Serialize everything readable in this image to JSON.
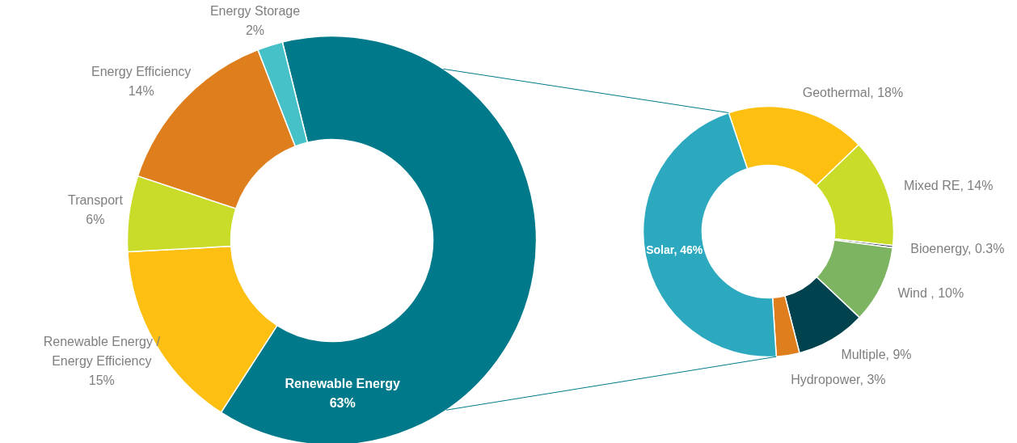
{
  "chart_data": [
    {
      "type": "donut",
      "categories": [
        "Renewable Energy",
        "Renewable Energy / Energy Efficiency",
        "Transport",
        "Energy Efficiency",
        "Energy Storage"
      ],
      "values": [
        63,
        15,
        6,
        14,
        2
      ],
      "value_labels": [
        "63%",
        "15%",
        "6%",
        "14%",
        "2%"
      ],
      "colors": [
        "#007a8a",
        "#fdbf12",
        "#c9dc2a",
        "#df7e1c",
        "#45c1c7"
      ]
    },
    {
      "type": "donut",
      "categories": [
        "Geothermal",
        "Mixed RE",
        "Bioenergy",
        "Wind ",
        "Multiple",
        "Hydropower",
        "Solar"
      ],
      "values": [
        18,
        14,
        0.3,
        10,
        9,
        3,
        46
      ],
      "value_labels": [
        "18%",
        "14%",
        "0.3%",
        "10%",
        "9%",
        "3%",
        "46%"
      ],
      "colors": [
        "#fdc010",
        "#c9dc2a",
        "#2e4050",
        "#7db462",
        "#00434f",
        "#df7e1c",
        "#2ca9bf"
      ]
    }
  ]
}
